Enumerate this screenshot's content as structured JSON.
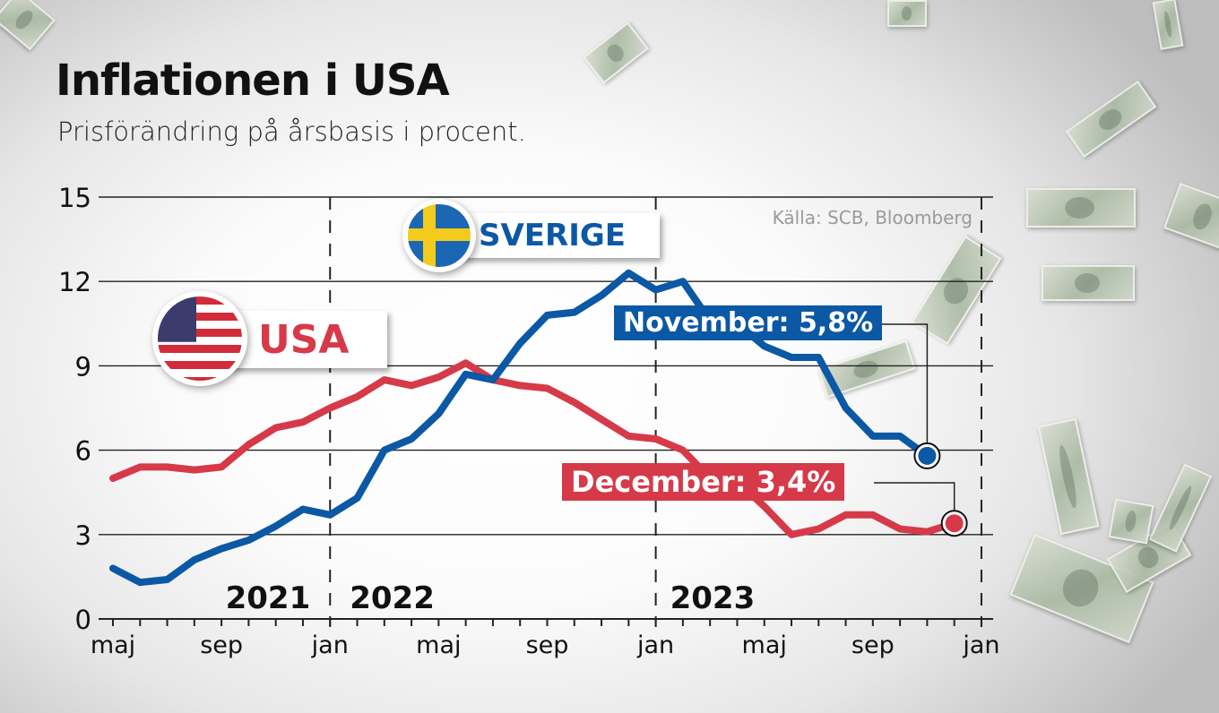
{
  "header": {
    "title": "Inflationen i USA",
    "subtitle": "Prisförändring på årsbasis i procent."
  },
  "source": "Källa: SCB, Bloomberg",
  "legend": {
    "usa": {
      "label": "USA",
      "color": "#d63a49",
      "flag_icon": "usa-flag-icon"
    },
    "sverige": {
      "label": "SVERIGE",
      "color": "#0b58a5",
      "flag_icon": "sweden-flag-icon"
    }
  },
  "callouts": {
    "sverige": {
      "label": "November: 5,8%",
      "color": "#0b58a5"
    },
    "usa": {
      "label": "December: 3,4%",
      "color": "#d63a49"
    }
  },
  "axis": {
    "y_ticks": [
      "0",
      "3",
      "6",
      "9",
      "12",
      "15"
    ],
    "x_ticks": [
      "maj",
      "sep",
      "jan",
      "maj",
      "sep",
      "jan",
      "maj",
      "sep",
      "jan"
    ],
    "years": [
      "2021",
      "2022",
      "2023"
    ]
  },
  "chart_data": {
    "type": "line",
    "title": "Inflationen i USA",
    "subtitle": "Prisförändring på årsbasis i procent.",
    "xlabel": "",
    "ylabel": "",
    "ylim": [
      0,
      15
    ],
    "y_ticks": [
      0,
      3,
      6,
      9,
      12,
      15
    ],
    "x_tick_labels": [
      "maj",
      "sep",
      "jan",
      "maj",
      "sep",
      "jan",
      "maj",
      "sep",
      "jan"
    ],
    "year_labels": [
      "2021",
      "2022",
      "2023"
    ],
    "grid": "horizontal solid lines; dashed vertical lines at year boundaries",
    "legend_position": "inline labels with flags",
    "source": "Källa: SCB, Bloomberg",
    "x": [
      "2021-05",
      "2021-06",
      "2021-07",
      "2021-08",
      "2021-09",
      "2021-10",
      "2021-11",
      "2021-12",
      "2022-01",
      "2022-02",
      "2022-03",
      "2022-04",
      "2022-05",
      "2022-06",
      "2022-07",
      "2022-08",
      "2022-09",
      "2022-10",
      "2022-11",
      "2022-12",
      "2023-01",
      "2023-02",
      "2023-03",
      "2023-04",
      "2023-05",
      "2023-06",
      "2023-07",
      "2023-08",
      "2023-09",
      "2023-10",
      "2023-11",
      "2023-12"
    ],
    "series": [
      {
        "name": "Sverige",
        "color": "#0b58a5",
        "values": [
          1.8,
          1.3,
          1.4,
          2.1,
          2.5,
          2.8,
          3.3,
          3.9,
          3.7,
          4.3,
          6.0,
          6.4,
          7.3,
          8.7,
          8.5,
          9.8,
          10.8,
          10.9,
          11.5,
          12.3,
          11.7,
          12.0,
          10.6,
          10.5,
          9.7,
          9.3,
          9.3,
          7.5,
          6.5,
          6.5,
          5.8,
          null
        ],
        "annotation": "November: 5,8%"
      },
      {
        "name": "USA",
        "color": "#d63a49",
        "values": [
          5.0,
          5.4,
          5.4,
          5.3,
          5.4,
          6.2,
          6.8,
          7.0,
          7.5,
          7.9,
          8.5,
          8.3,
          8.6,
          9.1,
          8.5,
          8.3,
          8.2,
          7.7,
          7.1,
          6.5,
          6.4,
          6.0,
          5.0,
          4.9,
          4.0,
          3.0,
          3.2,
          3.7,
          3.7,
          3.2,
          3.1,
          3.4
        ],
        "annotation": "December: 3,4%"
      }
    ]
  }
}
